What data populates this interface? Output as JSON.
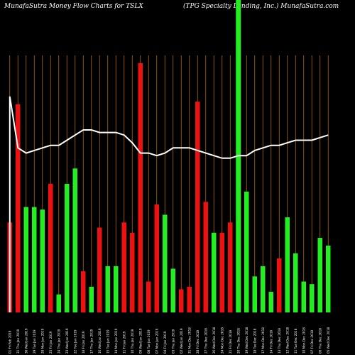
{
  "header": {
    "left_title": "MunafaSutra  Money Flow  Charts for TSLX",
    "right_title": "(TPG Specialty Lending, Inc.) MunafaSutra.com"
  },
  "colors": {
    "background": "#000000",
    "up": "#22ee22",
    "down": "#ee1111",
    "grid": "#b06a10",
    "line": "#ffffff",
    "highlight": "#22ee22"
  },
  "chart_data": {
    "type": "bar",
    "title": "MunafaSutra  Money Flow  Charts for TSLX",
    "subtitle": "(TPG Specialty Lending, Inc.) MunafaSutra.com",
    "xlabel": "",
    "ylabel": "",
    "grid": true,
    "ylim": [
      0,
      100
    ],
    "categories": [
      "01 Fri Feb 2019",
      "31 Thu Jan 2019",
      "30 Wed Jan 2019",
      "29 Tue Jan 2019",
      "28 Mon Jan 2019",
      "25 Fri Jan 2019",
      "24 Thu Jan 2019",
      "23 Wed Jan 2019",
      "22 Tue Jan 2019",
      "18 Fri Jan 2019",
      "17 Thu Jan 2019",
      "16 Wed Jan 2019",
      "15 Tue Jan 2019",
      "14 Mon Jan 2019",
      "11 Fri Jan 2019",
      "10 Thu Jan 2019",
      "09 Wed Jan 2019",
      "08 Tue Jan 2019",
      "07 Mon Jan 2019",
      "04 Fri Jan 2019",
      "03 Thu Jan 2019",
      "02 Wed Jan 2019",
      "31 Mon Dec 2018",
      "28 Fri Dec 2018",
      "27 Thu Dec 2018",
      "26 Wed Dec 2018",
      "24 Mon Dec 2018",
      "21 Fri Dec 2018",
      "20 Thu Dec 2018",
      "19 Wed Dec 2018",
      "18 Tue Dec 2018",
      "17 Mon Dec 2018",
      "14 Fri Dec 2018",
      "13 Thu Dec 2018",
      "12 Wed Dec 2018",
      "11 Tue Dec 2018",
      "10 Mon Dec 2018",
      "07 Fri Dec 2018",
      "06 Thu Dec 2018",
      "05 Wed Dec 2018"
    ],
    "bar_directions": [
      "down",
      "down",
      "up",
      "up",
      "up",
      "down",
      "up",
      "up",
      "up",
      "down",
      "up",
      "down",
      "up",
      "up",
      "down",
      "down",
      "down",
      "down",
      "down",
      "up",
      "up",
      "down",
      "down",
      "down",
      "down",
      "up",
      "down",
      "down",
      "up",
      "up",
      "up",
      "up",
      "up",
      "down",
      "up",
      "up",
      "up",
      "up",
      "up",
      "up"
    ],
    "values": [
      35,
      81,
      41,
      41,
      40,
      50,
      7,
      50,
      56,
      16,
      10,
      33,
      18,
      18,
      35,
      31,
      97,
      12,
      42,
      38,
      17,
      9,
      10,
      82,
      43,
      31,
      31,
      35,
      100,
      47,
      14,
      18,
      8,
      21,
      37,
      23,
      12,
      11,
      29,
      26
    ],
    "highlight_index": 28,
    "series": [
      {
        "values": [
          84,
          64,
          62,
          63,
          64,
          65,
          65,
          67,
          69,
          71,
          71,
          70,
          70,
          70,
          69,
          66,
          62,
          62,
          61,
          62,
          64,
          64,
          64,
          63,
          62,
          61,
          60,
          60,
          61,
          61,
          63,
          64,
          65,
          65,
          66,
          67,
          67,
          67,
          68,
          69
        ]
      }
    ]
  }
}
